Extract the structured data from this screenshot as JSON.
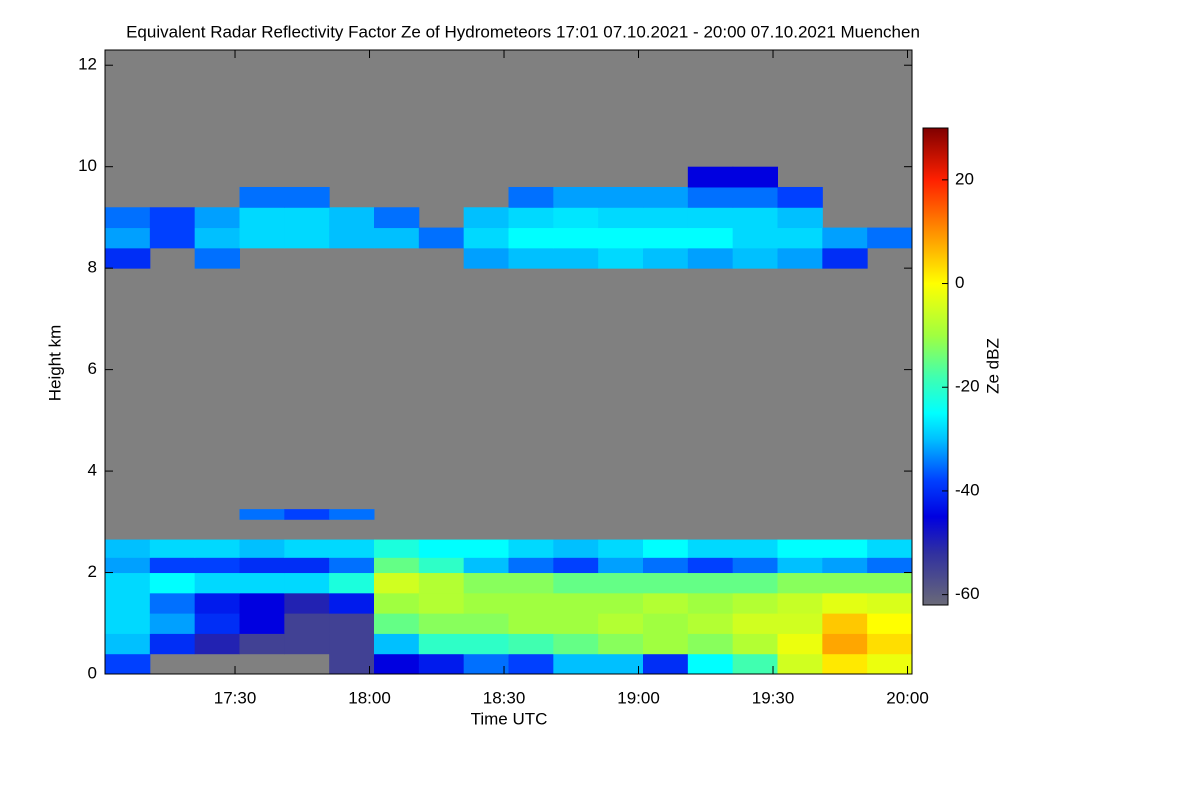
{
  "chart_data": {
    "type": "heatmap",
    "title": "Equivalent Radar Reflectivity Factor Ze of Hydrometeors   17:01 07.10.2021 - 20:00 07.10.2021 Muenchen",
    "xlabel": "Time UTC",
    "ylabel": "Height km",
    "colorbar_label": "Ze dBZ",
    "xlim": [
      1,
      181
    ],
    "xticks": [
      {
        "value": 30,
        "label": "17:30"
      },
      {
        "value": 60,
        "label": "18:00"
      },
      {
        "value": 90,
        "label": "18:30"
      },
      {
        "value": 120,
        "label": "19:00"
      },
      {
        "value": 150,
        "label": "19:30"
      },
      {
        "value": 180,
        "label": "20:00"
      }
    ],
    "ylim": [
      0,
      12.3
    ],
    "yticks": [
      0,
      2,
      4,
      6,
      8,
      10,
      12
    ],
    "clim": [
      -62,
      30
    ],
    "cticks": [
      -60,
      -40,
      -20,
      0,
      20
    ],
    "background": "#808080",
    "colorscale": [
      {
        "value": -62,
        "color": "#6a6a78"
      },
      {
        "value": -52,
        "color": "#3030a0"
      },
      {
        "value": -45,
        "color": "#0000e0"
      },
      {
        "value": -38,
        "color": "#0040ff"
      },
      {
        "value": -30,
        "color": "#00c0ff"
      },
      {
        "value": -25,
        "color": "#00ffff"
      },
      {
        "value": -18,
        "color": "#40ffb0"
      },
      {
        "value": -10,
        "color": "#a0ff40"
      },
      {
        "value": 0,
        "color": "#ffff00"
      },
      {
        "value": 10,
        "color": "#ff9000"
      },
      {
        "value": 20,
        "color": "#ff2000"
      },
      {
        "value": 30,
        "color": "#800000"
      }
    ],
    "xbins": [
      1,
      11,
      21,
      31,
      41,
      51,
      61,
      71,
      81,
      91,
      101,
      111,
      121,
      131,
      141,
      151,
      161,
      171,
      181
    ],
    "ybins": [
      0,
      0.4,
      0.8,
      1.2,
      1.6,
      2.0,
      2.3,
      2.65,
      3.05,
      3.25,
      8.0,
      8.4,
      8.8,
      9.2,
      9.6,
      10.0
    ],
    "values": [
      [
        -38,
        null,
        null,
        null,
        null,
        -55,
        -45,
        -42,
        -35,
        -38,
        -30,
        -30,
        -40,
        -25,
        -18,
        -5,
        2,
        -2
      ],
      [
        -30,
        -40,
        -50,
        -55,
        -55,
        -55,
        -30,
        -20,
        -20,
        -18,
        -15,
        -12,
        -10,
        -12,
        -8,
        -2,
        8,
        3
      ],
      [
        -28,
        -32,
        -40,
        -45,
        -55,
        -55,
        -15,
        -12,
        -12,
        -10,
        -10,
        -8,
        -10,
        -8,
        -5,
        -5,
        5,
        0
      ],
      [
        -28,
        -35,
        -42,
        -45,
        -50,
        -42,
        -10,
        -8,
        -10,
        -10,
        -10,
        -10,
        -8,
        -10,
        -8,
        -6,
        -3,
        -4
      ],
      [
        -28,
        -25,
        -28,
        -28,
        -28,
        -22,
        -5,
        -8,
        -12,
        -12,
        -15,
        -15,
        -15,
        -15,
        -15,
        -12,
        -12,
        -12
      ],
      [
        -32,
        -38,
        -38,
        -40,
        -40,
        -35,
        -15,
        -20,
        -30,
        -35,
        -38,
        -32,
        -35,
        -38,
        -35,
        -30,
        -32,
        -35
      ],
      [
        -30,
        -28,
        -28,
        -30,
        -28,
        -28,
        -22,
        -25,
        -25,
        -28,
        -30,
        -28,
        -25,
        -28,
        -28,
        -25,
        -25,
        -28
      ],
      [
        null,
        null,
        null,
        null,
        null,
        null,
        null,
        null,
        null,
        null,
        null,
        null,
        null,
        null,
        null,
        null,
        null,
        null
      ],
      [
        null,
        null,
        null,
        -35,
        -38,
        -35,
        null,
        null,
        null,
        null,
        null,
        null,
        null,
        null,
        null,
        null,
        null,
        null
      ],
      [
        null,
        null,
        null,
        null,
        null,
        null,
        null,
        null,
        null,
        null,
        null,
        null,
        null,
        null,
        null,
        null,
        null,
        null
      ],
      [
        -40,
        null,
        -35,
        null,
        null,
        null,
        null,
        null,
        -32,
        -30,
        -30,
        -28,
        -30,
        -32,
        -30,
        -32,
        -40,
        null
      ],
      [
        -32,
        -38,
        -30,
        -28,
        -28,
        -30,
        -30,
        -35,
        -28,
        -25,
        -25,
        -25,
        -25,
        -25,
        -28,
        -28,
        -32,
        -35
      ],
      [
        -35,
        -38,
        -32,
        -28,
        -28,
        -30,
        -35,
        null,
        -30,
        -28,
        -27,
        -28,
        -28,
        -28,
        -28,
        -30,
        null,
        null
      ],
      [
        null,
        null,
        null,
        -35,
        -35,
        null,
        null,
        null,
        null,
        -35,
        -32,
        -32,
        -32,
        -35,
        -35,
        -38,
        null,
        null
      ],
      [
        null,
        null,
        null,
        null,
        null,
        null,
        null,
        null,
        null,
        null,
        null,
        null,
        null,
        -45,
        -45,
        null,
        null,
        null
      ]
    ]
  }
}
